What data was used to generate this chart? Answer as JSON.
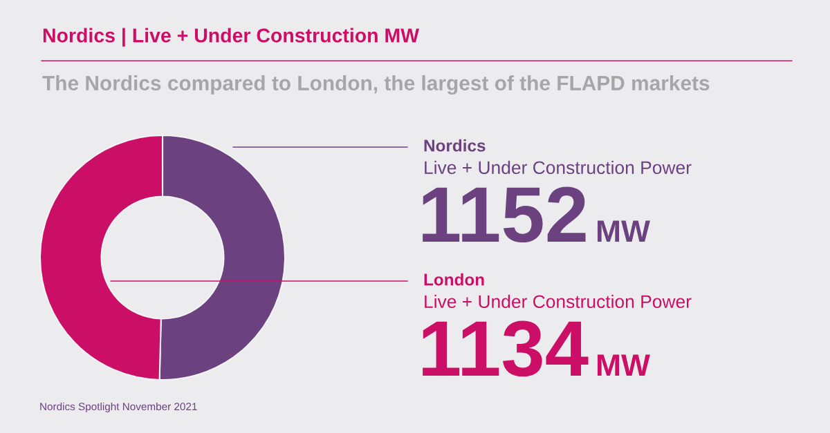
{
  "chart_data": {
    "type": "donut",
    "title": "Nordics | Live + Under Construction MW",
    "subtitle": "The Nordics compared to London, the largest of the FLAPD markets",
    "categories": [
      "Nordics",
      "London"
    ],
    "values": [
      1152,
      1134
    ],
    "colors": [
      "#6c4180",
      "#cc0f66"
    ],
    "data_labels": true,
    "annotations": [
      "Live + Under Construction Power",
      "MW",
      "Live + Under Construction Power",
      "MW",
      "Nordics Spotlight November 2021"
    ]
  }
}
